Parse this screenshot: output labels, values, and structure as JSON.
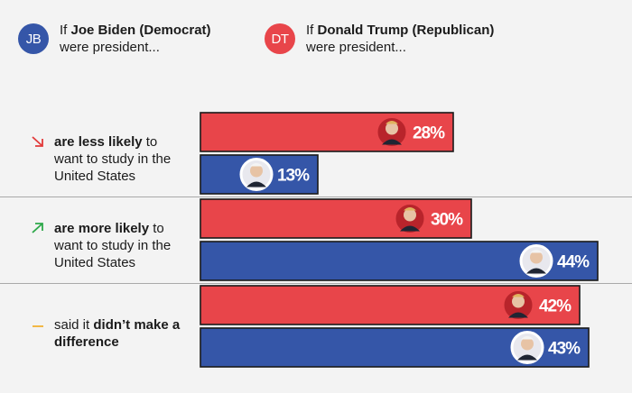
{
  "colors": {
    "biden": "#3556a8",
    "trump": "#e8454a",
    "background": "#f3f3f3",
    "down_arrow": "#e23a3a",
    "up_arrow": "#2ea84a",
    "neutral_dash": "#f2b233"
  },
  "legend": {
    "biden": {
      "badge": "JB",
      "prefix": "If ",
      "name": "Joe Biden (Democrat)",
      "suffix": "were president..."
    },
    "trump": {
      "badge": "DT",
      "prefix": "If ",
      "name": "Donald Trump (Republican)",
      "suffix": "were president..."
    }
  },
  "rows": [
    {
      "icon": "arrow-down-right-icon",
      "bold": "are less likely",
      "rest_inline": " to",
      "rest": "want to study in the United States"
    },
    {
      "icon": "arrow-up-right-icon",
      "bold": "are more likely",
      "rest_inline": " to",
      "rest": "want to study in the United States"
    },
    {
      "icon": "dash-icon",
      "prefix": "said it ",
      "bold": "didn’t make a difference",
      "rest_inline": "",
      "rest": ""
    }
  ],
  "chart_data": {
    "type": "bar",
    "orientation": "horizontal",
    "categories": [
      "are less likely to want to study in the United States",
      "are more likely to want to study in the United States",
      "said it didn’t make a difference"
    ],
    "series": [
      {
        "name": "If Donald Trump (Republican) were president...",
        "values": [
          28,
          30,
          42
        ],
        "labels": [
          "28%",
          "30%",
          "42%"
        ]
      },
      {
        "name": "If Joe Biden (Democrat) were president...",
        "values": [
          13,
          44,
          43
        ],
        "labels": [
          "13%",
          "44%",
          "43%"
        ]
      }
    ],
    "xlim": [
      0,
      44
    ]
  }
}
